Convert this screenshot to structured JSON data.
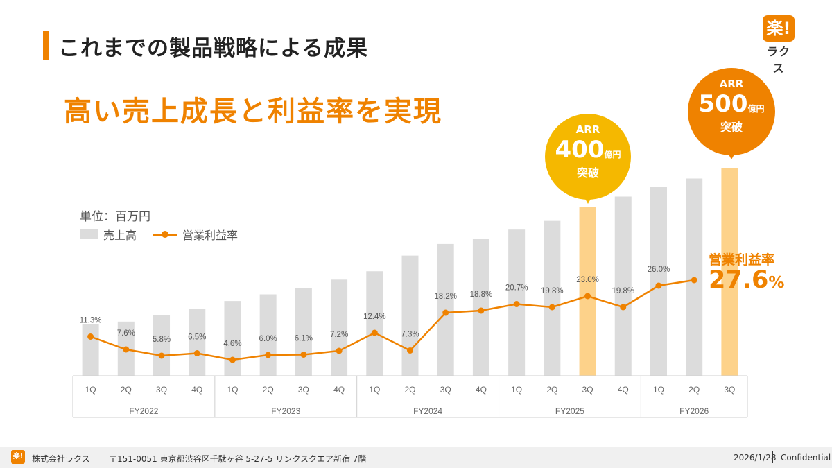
{
  "slide": {
    "title": "これまでの製品戦略による成果",
    "headline": "高い売上成長と利益率を実現"
  },
  "logo": {
    "mark": "楽!",
    "name": "ラクス"
  },
  "colors": {
    "accent": "#ef8200",
    "badge_yellow": "#f5b800",
    "bar_gray": "#dcdcdc",
    "bar_highlight": "#fdd28a",
    "line": "#ef8200",
    "title_bar": "#ef8200"
  },
  "callouts": {
    "arr400": {
      "label": "ARR",
      "value": "400",
      "unit": "億円",
      "suffix": "突破"
    },
    "arr500": {
      "label": "ARR",
      "value": "500",
      "unit": "億円",
      "suffix": "突破"
    },
    "latest_margin": {
      "label": "営業利益率",
      "value": "27.6",
      "unit": "%"
    }
  },
  "chart_data": {
    "type": "bar",
    "unit_label": "単位：百万円",
    "legend": [
      "売上高",
      "営業利益率"
    ],
    "legend_placement": "top-left",
    "fiscal_years": [
      {
        "label": "FY2022",
        "quarters": 4
      },
      {
        "label": "FY2023",
        "quarters": 4
      },
      {
        "label": "FY2024",
        "quarters": 4
      },
      {
        "label": "FY2025",
        "quarters": 4
      },
      {
        "label": "FY2026",
        "quarters": 3
      }
    ],
    "categories": [
      "1Q",
      "2Q",
      "3Q",
      "4Q",
      "1Q",
      "2Q",
      "3Q",
      "4Q",
      "1Q",
      "2Q",
      "3Q",
      "4Q",
      "1Q",
      "2Q",
      "3Q",
      "4Q",
      "1Q",
      "2Q",
      "3Q"
    ],
    "series": [
      {
        "name": "売上高",
        "type": "bar",
        "values": [
          4790,
          5050,
          5680,
          6230,
          6970,
          7590,
          8200,
          8960,
          9740,
          11200,
          12280,
          12760,
          13620,
          14430,
          15720,
          16700,
          17630,
          18380,
          19380
        ],
        "highlight_indices": [
          14,
          18
        ]
      },
      {
        "name": "営業利益率",
        "type": "line",
        "values": [
          11.3,
          7.6,
          5.8,
          6.5,
          4.6,
          6.0,
          6.1,
          7.2,
          12.4,
          7.3,
          18.2,
          18.8,
          20.7,
          19.8,
          23.0,
          19.8,
          26.0,
          27.6,
          null
        ],
        "labels": [
          "11.3%",
          "7.6%",
          "5.8%",
          "6.5%",
          "4.6%",
          "6.0%",
          "6.1%",
          "7.2%",
          "12.4%",
          "7.3%",
          "18.2%",
          "18.8%",
          "20.7%",
          "19.8%",
          "23.0%",
          "19.8%",
          "26.0%",
          "",
          ""
        ]
      }
    ],
    "grid": false
  },
  "footer": {
    "logo_mark": "楽!",
    "company": "株式会社ラクス",
    "address": "〒151-0051 東京都渋谷区千駄ヶ谷 5-27-5 リンクスクエア新宿 7階",
    "date": "2026/1/28",
    "confidential": "Confidential"
  }
}
